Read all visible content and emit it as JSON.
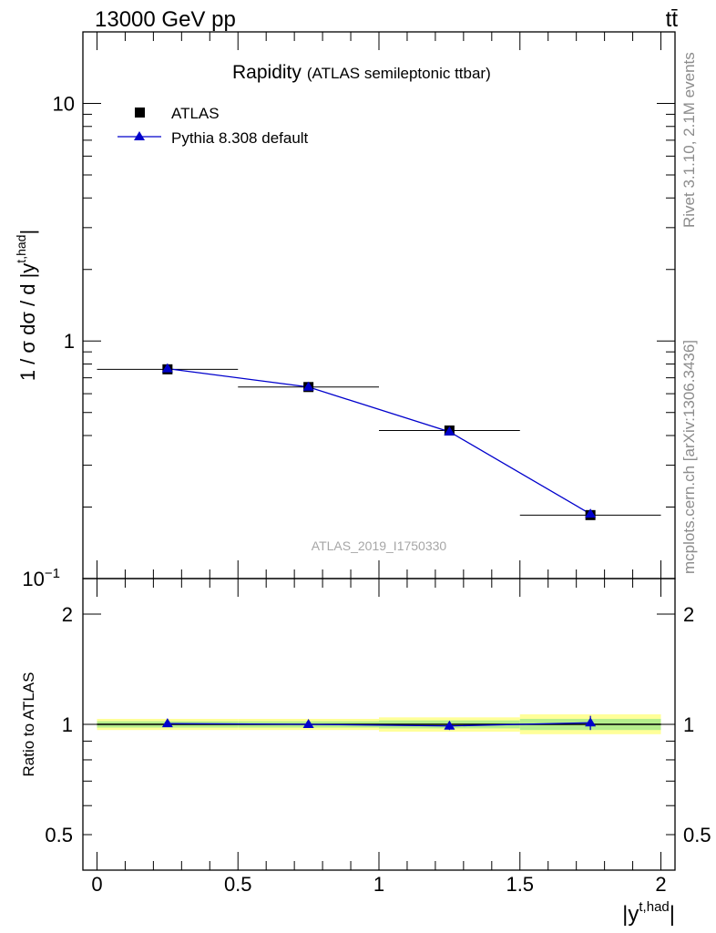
{
  "header": {
    "left": "13000 GeV pp",
    "right": "tt̄"
  },
  "side": {
    "rivet": "Rivet 3.1.10,  2.1M events",
    "mcplots": "mcplots.cern.ch [arXiv:1306.3436]"
  },
  "chart_data": [
    {
      "type": "line",
      "title": "Rapidity",
      "subtitle": "(ATLAS semileptonic ttbar)",
      "ylabel": "1 / σ dσ / d |y^{t,had}|",
      "yscale": "log",
      "ylim": [
        0.1,
        20
      ],
      "xlim": [
        -0.05,
        2.05
      ],
      "watermark": "ATLAS_2019_I1750330",
      "legend_position": "top-left",
      "yticks": [
        {
          "value": 10,
          "label": "10"
        },
        {
          "value": 1,
          "label": "1"
        },
        {
          "value": 0.1,
          "label": "10",
          "exp": "−1"
        }
      ],
      "series": [
        {
          "name": "ATLAS",
          "marker": "square",
          "color": "#000000",
          "x": [
            0.25,
            0.75,
            1.25,
            1.75
          ],
          "y": [
            0.76,
            0.64,
            0.42,
            0.185
          ],
          "xerr": 0.25
        },
        {
          "name": "Pythia 8.308 default",
          "marker": "triangle",
          "color": "#0000cc",
          "x": [
            0.25,
            0.75,
            1.25,
            1.75
          ],
          "y": [
            0.765,
            0.64,
            0.415,
            0.187
          ]
        }
      ]
    },
    {
      "type": "line",
      "ylabel": "Ratio to ATLAS",
      "xlabel": "|y^{t,had}|",
      "yscale": "log",
      "ylim": [
        0.4,
        2.5
      ],
      "xlim": [
        -0.05,
        2.05
      ],
      "xticks": [
        {
          "value": 0,
          "label": "0"
        },
        {
          "value": 0.5,
          "label": "0.5"
        },
        {
          "value": 1,
          "label": "1"
        },
        {
          "value": 1.5,
          "label": "1.5"
        },
        {
          "value": 2,
          "label": "2"
        }
      ],
      "yticks": [
        {
          "value": 2,
          "label": "2"
        },
        {
          "value": 1,
          "label": "1"
        },
        {
          "value": 0.5,
          "label": "0.5"
        }
      ],
      "bands": [
        {
          "x0": 0,
          "x1": 0.5,
          "yellow": [
            0.965,
            1.035
          ],
          "green": [
            0.98,
            1.02
          ]
        },
        {
          "x0": 0.5,
          "x1": 1.0,
          "yellow": [
            0.965,
            1.035
          ],
          "green": [
            0.98,
            1.02
          ]
        },
        {
          "x0": 1.0,
          "x1": 1.5,
          "yellow": [
            0.955,
            1.045
          ],
          "green": [
            0.975,
            1.025
          ]
        },
        {
          "x0": 1.5,
          "x1": 2.0,
          "yellow": [
            0.94,
            1.065
          ],
          "green": [
            0.965,
            1.035
          ]
        }
      ],
      "series": [
        {
          "name": "Pythia 8.308 default",
          "color": "#0000cc",
          "x": [
            0.25,
            0.75,
            1.25,
            1.75
          ],
          "y": [
            1.005,
            1.0,
            0.99,
            1.01
          ],
          "yerr": [
            0.01,
            0.01,
            0.025,
            0.045
          ]
        }
      ]
    }
  ]
}
